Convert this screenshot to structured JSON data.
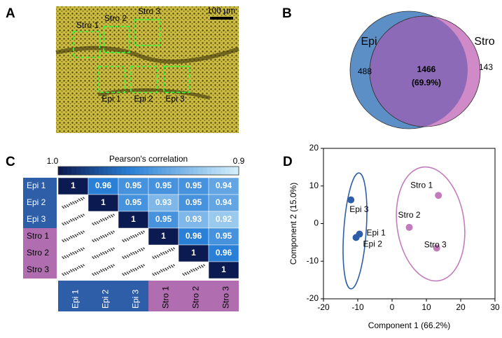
{
  "panels": {
    "A": {
      "label": "A",
      "scale_bar": "100 µm",
      "regions": [
        "Stro 1",
        "Stro 2",
        "Stro 3",
        "Epi 1",
        "Epi 2",
        "Epi 3"
      ]
    },
    "B": {
      "label": "B",
      "sets": [
        "Epi",
        "Stro"
      ],
      "only_first": 488,
      "shared": 1466,
      "shared_label": "(69.9%)",
      "only_second": 143
    },
    "C": {
      "label": "C",
      "title": "Pearson's correlation",
      "scale_min": {
        "value": 1.0,
        "label": "1.0"
      },
      "scale_max": 0.9,
      "samples": [
        "Epi 1",
        "Epi 2",
        "Epi 3",
        "Stro 1",
        "Stro 2",
        "Stro 3"
      ],
      "matrix": [
        [
          1,
          0.96,
          0.95,
          0.95,
          0.95,
          0.94
        ],
        [
          null,
          1,
          0.95,
          0.93,
          0.95,
          0.94
        ],
        [
          null,
          null,
          1,
          0.95,
          0.93,
          0.92
        ],
        [
          null,
          null,
          null,
          1,
          0.96,
          0.95
        ],
        [
          null,
          null,
          null,
          null,
          1,
          0.96
        ],
        [
          null,
          null,
          null,
          null,
          null,
          1
        ]
      ]
    }
  },
  "chart_data": {
    "type": "scatter",
    "label": "D",
    "x_label": "Component 1 (66.2%)",
    "y_label": "Component 2 (15.0%)",
    "xlim": [
      -20,
      30
    ],
    "xticks": [
      -20,
      -10,
      0,
      10,
      20,
      30
    ],
    "ylim": [
      -20,
      20
    ],
    "yticks": [
      -20,
      -10,
      0,
      10,
      20
    ],
    "series": [
      {
        "name": "Epi",
        "color": "#2f5ea8",
        "points": [
          "Epi 3",
          "Epi 1",
          "Epi 2"
        ],
        "x": [
          -12,
          -9.5,
          -10.5
        ],
        "values": [
          6.3,
          -2.8,
          -3.7
        ]
      },
      {
        "name": "Stro",
        "color": "#c27cbd",
        "points": [
          "Stro 1",
          "Stro 2",
          "Stro 3"
        ],
        "x": [
          13.5,
          5,
          13
        ],
        "values": [
          7.5,
          -1,
          -6.5
        ]
      }
    ]
  }
}
